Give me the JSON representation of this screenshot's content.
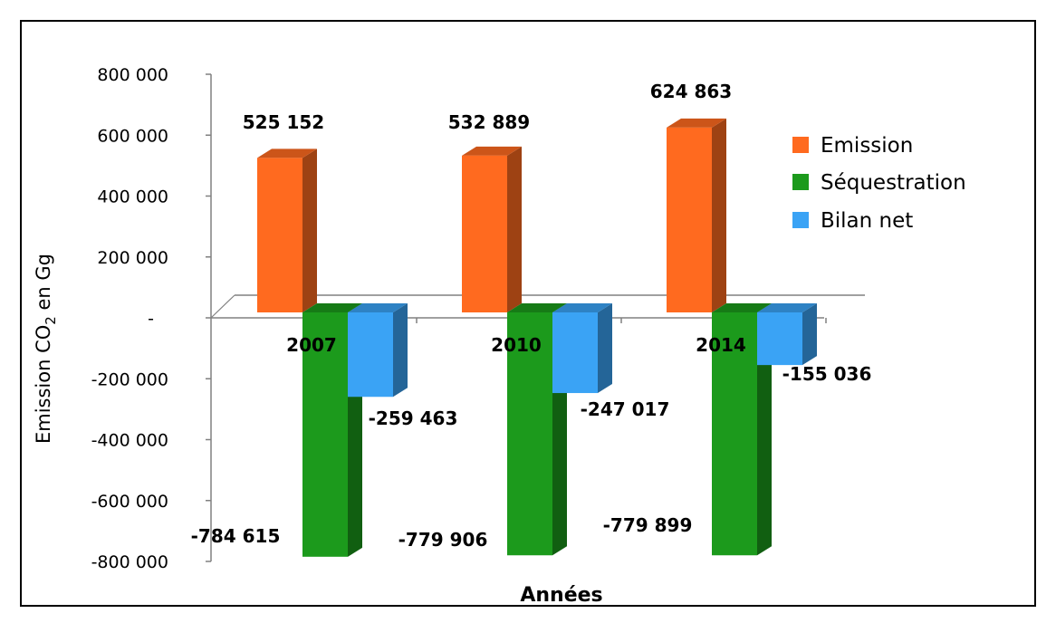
{
  "chart_data": {
    "type": "bar",
    "title": "",
    "xlabel": "Années",
    "ylabel": "Emission CO2 en Gg",
    "ylabel_main": "Emission CO",
    "ylabel_sub": "2",
    "ylabel_tail": " en Gg",
    "categories": [
      "2007",
      "2010",
      "2014"
    ],
    "series": [
      {
        "name": "Emission",
        "values": [
          525152,
          532889,
          624863
        ],
        "labels": [
          "525 152",
          "532 889",
          "624 863"
        ],
        "color": "#ff6a1f"
      },
      {
        "name": "Séquestration",
        "values": [
          -784615,
          -779906,
          -779899
        ],
        "labels": [
          "-784 615",
          "-779 906",
          "-779 899"
        ],
        "color": "#1c9a1c"
      },
      {
        "name": "Bilan net",
        "values": [
          -259463,
          -247017,
          -155036
        ],
        "labels": [
          "-259 463",
          "-247 017",
          "-155 036"
        ],
        "color": "#3aa3f5"
      }
    ],
    "ylim": [
      -800000,
      800000
    ],
    "yticks": [
      {
        "value": 800000,
        "label": "800 000"
      },
      {
        "value": 600000,
        "label": "600 000"
      },
      {
        "value": 400000,
        "label": "400 000"
      },
      {
        "value": 200000,
        "label": "200 000"
      },
      {
        "value": 0,
        "label": "-"
      },
      {
        "value": -200000,
        "label": "-200 000"
      },
      {
        "value": -400000,
        "label": "-400 000"
      },
      {
        "value": -600000,
        "label": "-600 000"
      },
      {
        "value": -800000,
        "label": "-800 000"
      }
    ],
    "grid": false,
    "legend_position": "right"
  }
}
